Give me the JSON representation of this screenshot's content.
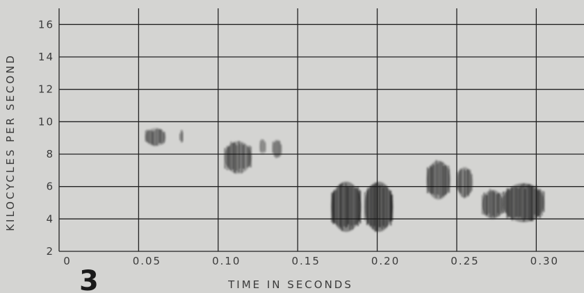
{
  "chart_data": {
    "type": "heatmap",
    "figure_number": "3",
    "xlabel": "TIME IN SECONDS",
    "ylabel": "KILOCYCLES PER SECOND",
    "xlim": [
      0,
      0.33
    ],
    "ylim": [
      2,
      17
    ],
    "x_ticks": [
      "0",
      "0.05",
      "0.10",
      "0.15",
      "0.20",
      "0.25",
      "0.30"
    ],
    "y_ticks": [
      "2",
      "4",
      "6",
      "8",
      "10",
      "12",
      "14",
      "16"
    ],
    "grid": true,
    "series": [
      {
        "t_start": 0.054,
        "t_end": 0.067,
        "f_low": 8.5,
        "f_high": 9.6,
        "intensity": 0.55
      },
      {
        "t_start": 0.076,
        "t_end": 0.078,
        "f_low": 8.7,
        "f_high": 9.5,
        "intensity": 0.4
      },
      {
        "t_start": 0.104,
        "t_end": 0.121,
        "f_low": 6.8,
        "f_high": 8.8,
        "intensity": 0.6
      },
      {
        "t_start": 0.126,
        "t_end": 0.13,
        "f_low": 8.0,
        "f_high": 8.9,
        "intensity": 0.4
      },
      {
        "t_start": 0.134,
        "t_end": 0.14,
        "f_low": 7.8,
        "f_high": 8.9,
        "intensity": 0.45
      },
      {
        "t_start": 0.171,
        "t_end": 0.19,
        "f_low": 3.2,
        "f_high": 6.3,
        "intensity": 0.85
      },
      {
        "t_start": 0.192,
        "t_end": 0.21,
        "f_low": 3.2,
        "f_high": 6.3,
        "intensity": 0.85
      },
      {
        "t_start": 0.231,
        "t_end": 0.246,
        "f_low": 5.2,
        "f_high": 7.6,
        "intensity": 0.65
      },
      {
        "t_start": 0.25,
        "t_end": 0.26,
        "f_low": 5.3,
        "f_high": 7.2,
        "intensity": 0.6
      },
      {
        "t_start": 0.266,
        "t_end": 0.279,
        "f_low": 4.0,
        "f_high": 5.8,
        "intensity": 0.7
      },
      {
        "t_start": 0.279,
        "t_end": 0.305,
        "f_low": 3.8,
        "f_high": 6.2,
        "intensity": 0.8
      }
    ]
  }
}
